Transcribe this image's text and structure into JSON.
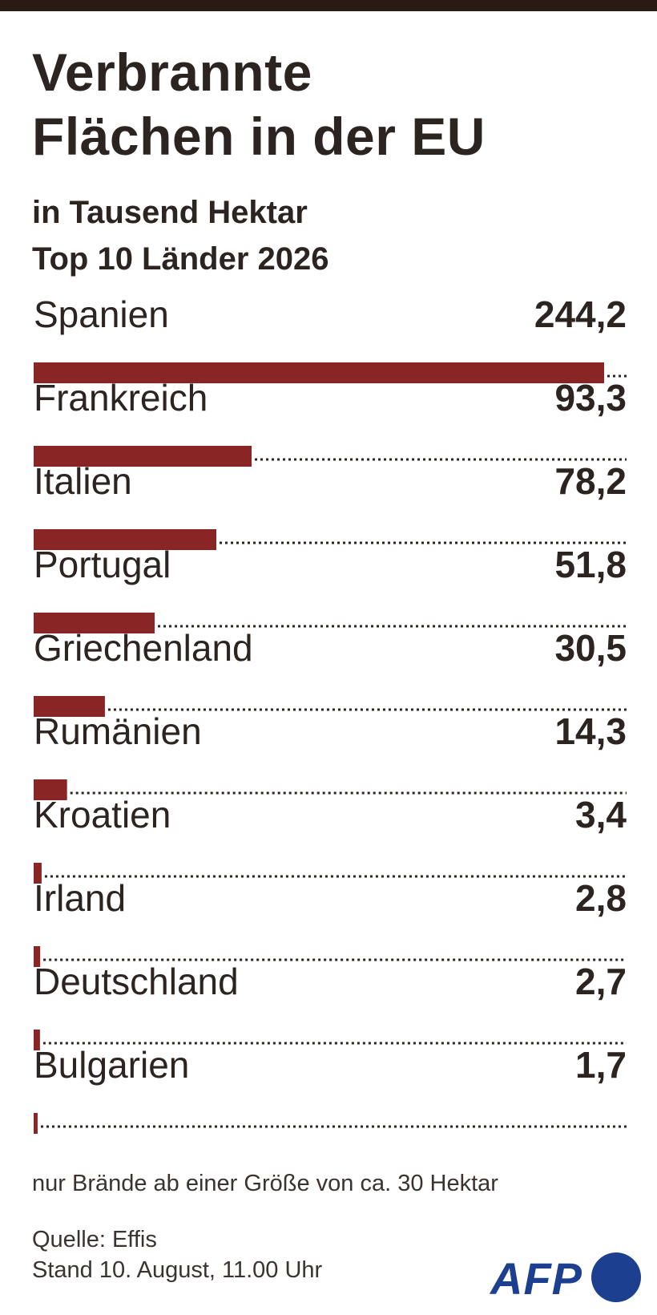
{
  "chart_data": {
    "type": "bar",
    "orientation": "horizontal",
    "title": "Verbrannte Flächen in der EU",
    "title_lines": [
      "Verbrannte",
      "Flächen in der EU"
    ],
    "subtitle_lines": [
      "in Tausend Hektar",
      "Top 10 Länder 2026"
    ],
    "categories": [
      "Spanien",
      "Frankreich",
      "Italien",
      "Portugal",
      "Griechenland",
      "Rumänien",
      "Kroatien",
      "Irland",
      "Deutschland",
      "Bulgarien"
    ],
    "values": [
      244.2,
      93.3,
      78.2,
      51.8,
      30.5,
      14.3,
      3.4,
      2.8,
      2.7,
      1.7
    ],
    "value_labels": [
      "244,2",
      "93,3",
      "78,2",
      "51,8",
      "30,5",
      "14,3",
      "3,4",
      "2,8",
      "2,7",
      "1,7"
    ],
    "xlim": [
      0,
      244.2
    ],
    "grid": false,
    "bar_color": "#8a2525"
  },
  "footnote": "nur Brände ab einer Größe von ca. 30 Hektar",
  "source_lines": [
    "Quelle: Effis",
    "Stand 10. August, 11.00 Uhr"
  ],
  "logo": {
    "text": "AFP",
    "color": "#1d3f8f"
  }
}
